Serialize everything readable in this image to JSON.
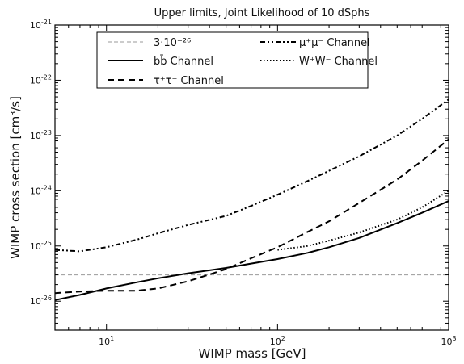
{
  "chart_data": {
    "type": "line",
    "title": "Upper limits, Joint Likelihood of 10 dSphs",
    "xlabel": "WIMP mass [GeV]",
    "ylabel": "WIMP cross section [cm³/s]",
    "xscale": "log",
    "yscale": "log",
    "xlim": [
      5,
      1000
    ],
    "ylim": [
      3e-27,
      1e-21
    ],
    "grid": false,
    "legend_position": "top",
    "xticks": [
      {
        "value": 10,
        "base": "10",
        "exp": "1"
      },
      {
        "value": 100,
        "base": "10",
        "exp": "2"
      },
      {
        "value": 1000,
        "base": "10",
        "exp": "3"
      }
    ],
    "yticks": [
      {
        "value": 1e-26,
        "base": "10",
        "exp": "-26"
      },
      {
        "value": 1e-25,
        "base": "10",
        "exp": "-25"
      },
      {
        "value": 1e-24,
        "base": "10",
        "exp": "-24"
      },
      {
        "value": 1e-23,
        "base": "10",
        "exp": "-23"
      },
      {
        "value": 1e-22,
        "base": "10",
        "exp": "-22"
      },
      {
        "value": 1e-21,
        "base": "10",
        "exp": "-21"
      }
    ],
    "series": [
      {
        "name": "3·10⁻²⁶",
        "style": "thin-dashed",
        "color": "#9a9a9a",
        "x": [
          5,
          1000
        ],
        "y": [
          3e-26,
          3e-26
        ]
      },
      {
        "name": "bb̄ Channel",
        "style": "solid",
        "color": "#000000",
        "x": [
          5,
          7,
          10,
          15,
          20,
          30,
          50,
          70,
          100,
          150,
          200,
          300,
          500,
          700,
          1000
        ],
        "y": [
          1.05e-26,
          1.3e-26,
          1.7e-26,
          2.2e-26,
          2.6e-26,
          3.2e-26,
          4e-26,
          4.8e-26,
          5.8e-26,
          7.5e-26,
          9.5e-26,
          1.4e-25,
          2.6e-25,
          4e-25,
          6.5e-25
        ]
      },
      {
        "name": "τ⁺τ⁻ Channel",
        "style": "dashed",
        "color": "#000000",
        "x": [
          5,
          7,
          10,
          15,
          20,
          30,
          50,
          70,
          100,
          150,
          200,
          300,
          500,
          700,
          1000
        ],
        "y": [
          1.4e-26,
          1.5e-26,
          1.55e-26,
          1.55e-26,
          1.7e-26,
          2.3e-26,
          3.8e-26,
          6e-26,
          9.5e-26,
          1.8e-25,
          2.8e-25,
          6e-25,
          1.6e-24,
          3.5e-24,
          8.5e-24
        ]
      },
      {
        "name": "μ⁺μ⁻ Channel",
        "style": "dash-dot",
        "color": "#000000",
        "x": [
          5,
          7,
          10,
          15,
          20,
          30,
          50,
          70,
          100,
          150,
          200,
          300,
          500,
          700,
          1000
        ],
        "y": [
          8.5e-26,
          8e-26,
          9.5e-26,
          1.3e-25,
          1.7e-25,
          2.4e-25,
          3.5e-25,
          5.3e-25,
          8.5e-25,
          1.5e-24,
          2.3e-24,
          4.2e-24,
          1e-23,
          2e-23,
          4.5e-23
        ]
      },
      {
        "name": "W⁺W⁻ Channel",
        "style": "dotted",
        "color": "#000000",
        "x": [
          100,
          150,
          200,
          300,
          500,
          700,
          1000
        ],
        "y": [
          8.5e-26,
          1e-25,
          1.25e-25,
          1.75e-25,
          3e-25,
          5e-25,
          1e-24
        ]
      }
    ]
  }
}
